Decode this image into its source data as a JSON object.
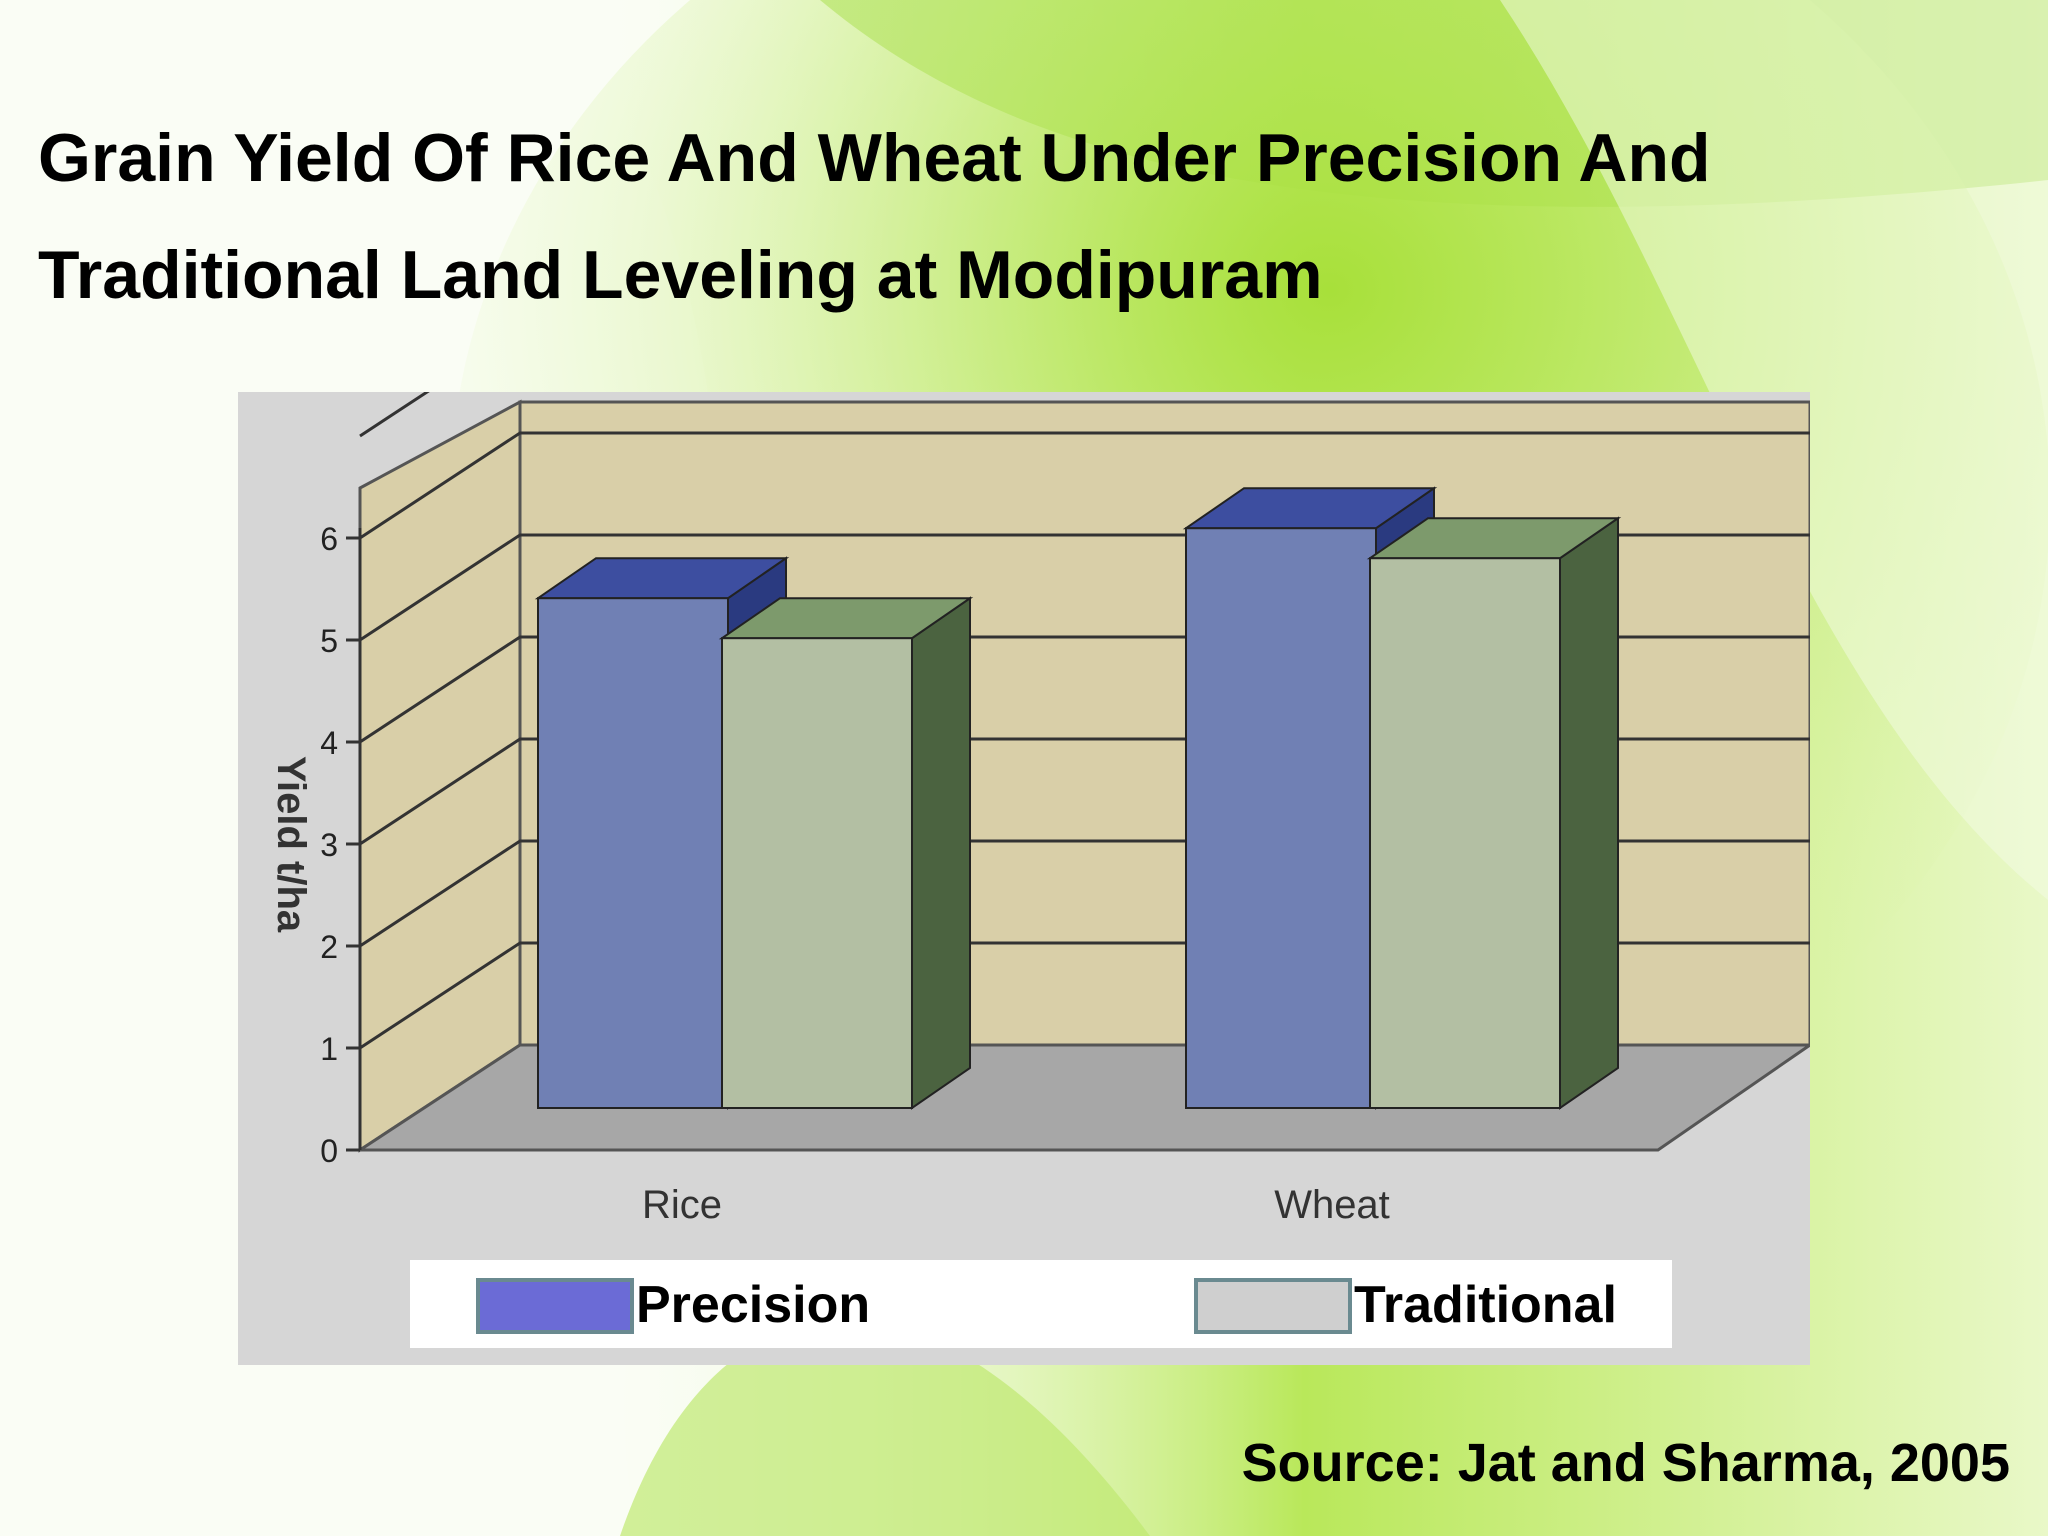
{
  "title": {
    "line1": "Grain Yield Of Rice And Wheat Under Precision And",
    "line2": "Traditional Land Leveling at Modipuram"
  },
  "source": "Source: Jat and Sharma, 2005",
  "colors": {
    "precision_front": "#7080b4",
    "precision_top": "#3d4ea0",
    "precision_side": "#2a3a80",
    "traditional_front": "#b3bfa3",
    "traditional_top": "#7d9a6c",
    "traditional_side": "#4b6340",
    "wall": "#d9cfa8",
    "floor": "#a7a7a7",
    "panel": "#d6d6d6",
    "legend_precision": "#6b6bd6",
    "legend_traditional": "#cfcfcf"
  },
  "chart_data": {
    "type": "bar",
    "categories": [
      "Rice",
      "Wheat"
    ],
    "series": [
      {
        "name": "Precision",
        "values": [
          5.1,
          5.8
        ]
      },
      {
        "name": "Traditional",
        "values": [
          4.7,
          5.5
        ]
      }
    ],
    "ylabel": "Yield t/ha",
    "ylim": [
      0,
      6
    ],
    "yticks": [
      "0",
      "1",
      "2",
      "3",
      "4",
      "5",
      "6"
    ],
    "grid": true,
    "legend": "bottom",
    "style": "3d-column"
  }
}
